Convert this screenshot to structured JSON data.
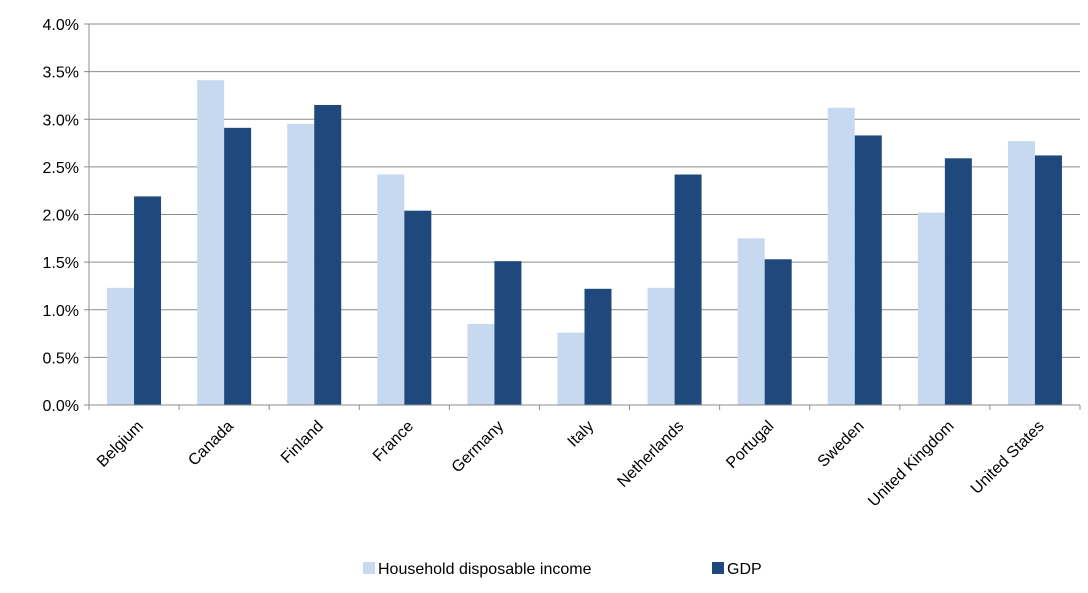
{
  "chart_data": {
    "type": "bar",
    "title": "",
    "xlabel": "",
    "ylabel": "",
    "categories": [
      "Belgium",
      "Canada",
      "Finland",
      "France",
      "Germany",
      "Italy",
      "Netherlands",
      "Portugal",
      "Sweden",
      "United Kingdom",
      "United States"
    ],
    "series": [
      {
        "name": "Household disposable income",
        "color": "#c6d9f1",
        "values": [
          1.23,
          3.41,
          2.95,
          2.42,
          0.85,
          0.76,
          1.23,
          1.75,
          3.12,
          2.02,
          2.77
        ]
      },
      {
        "name": "GDP",
        "color": "#1f497d",
        "values": [
          2.19,
          2.91,
          3.15,
          2.04,
          1.51,
          1.22,
          2.42,
          1.53,
          2.83,
          2.59,
          2.62
        ]
      }
    ],
    "ylim": [
      0,
      4.0
    ],
    "yticks": [
      0.0,
      0.5,
      1.0,
      1.5,
      2.0,
      2.5,
      3.0,
      3.5,
      4.0
    ],
    "ytick_labels": [
      "0.0%",
      "0.5%",
      "1.0%",
      "1.5%",
      "2.0%",
      "2.5%",
      "3.0%",
      "3.5%",
      "4.0%"
    ],
    "grid": true,
    "legend_position": "bottom-center"
  }
}
